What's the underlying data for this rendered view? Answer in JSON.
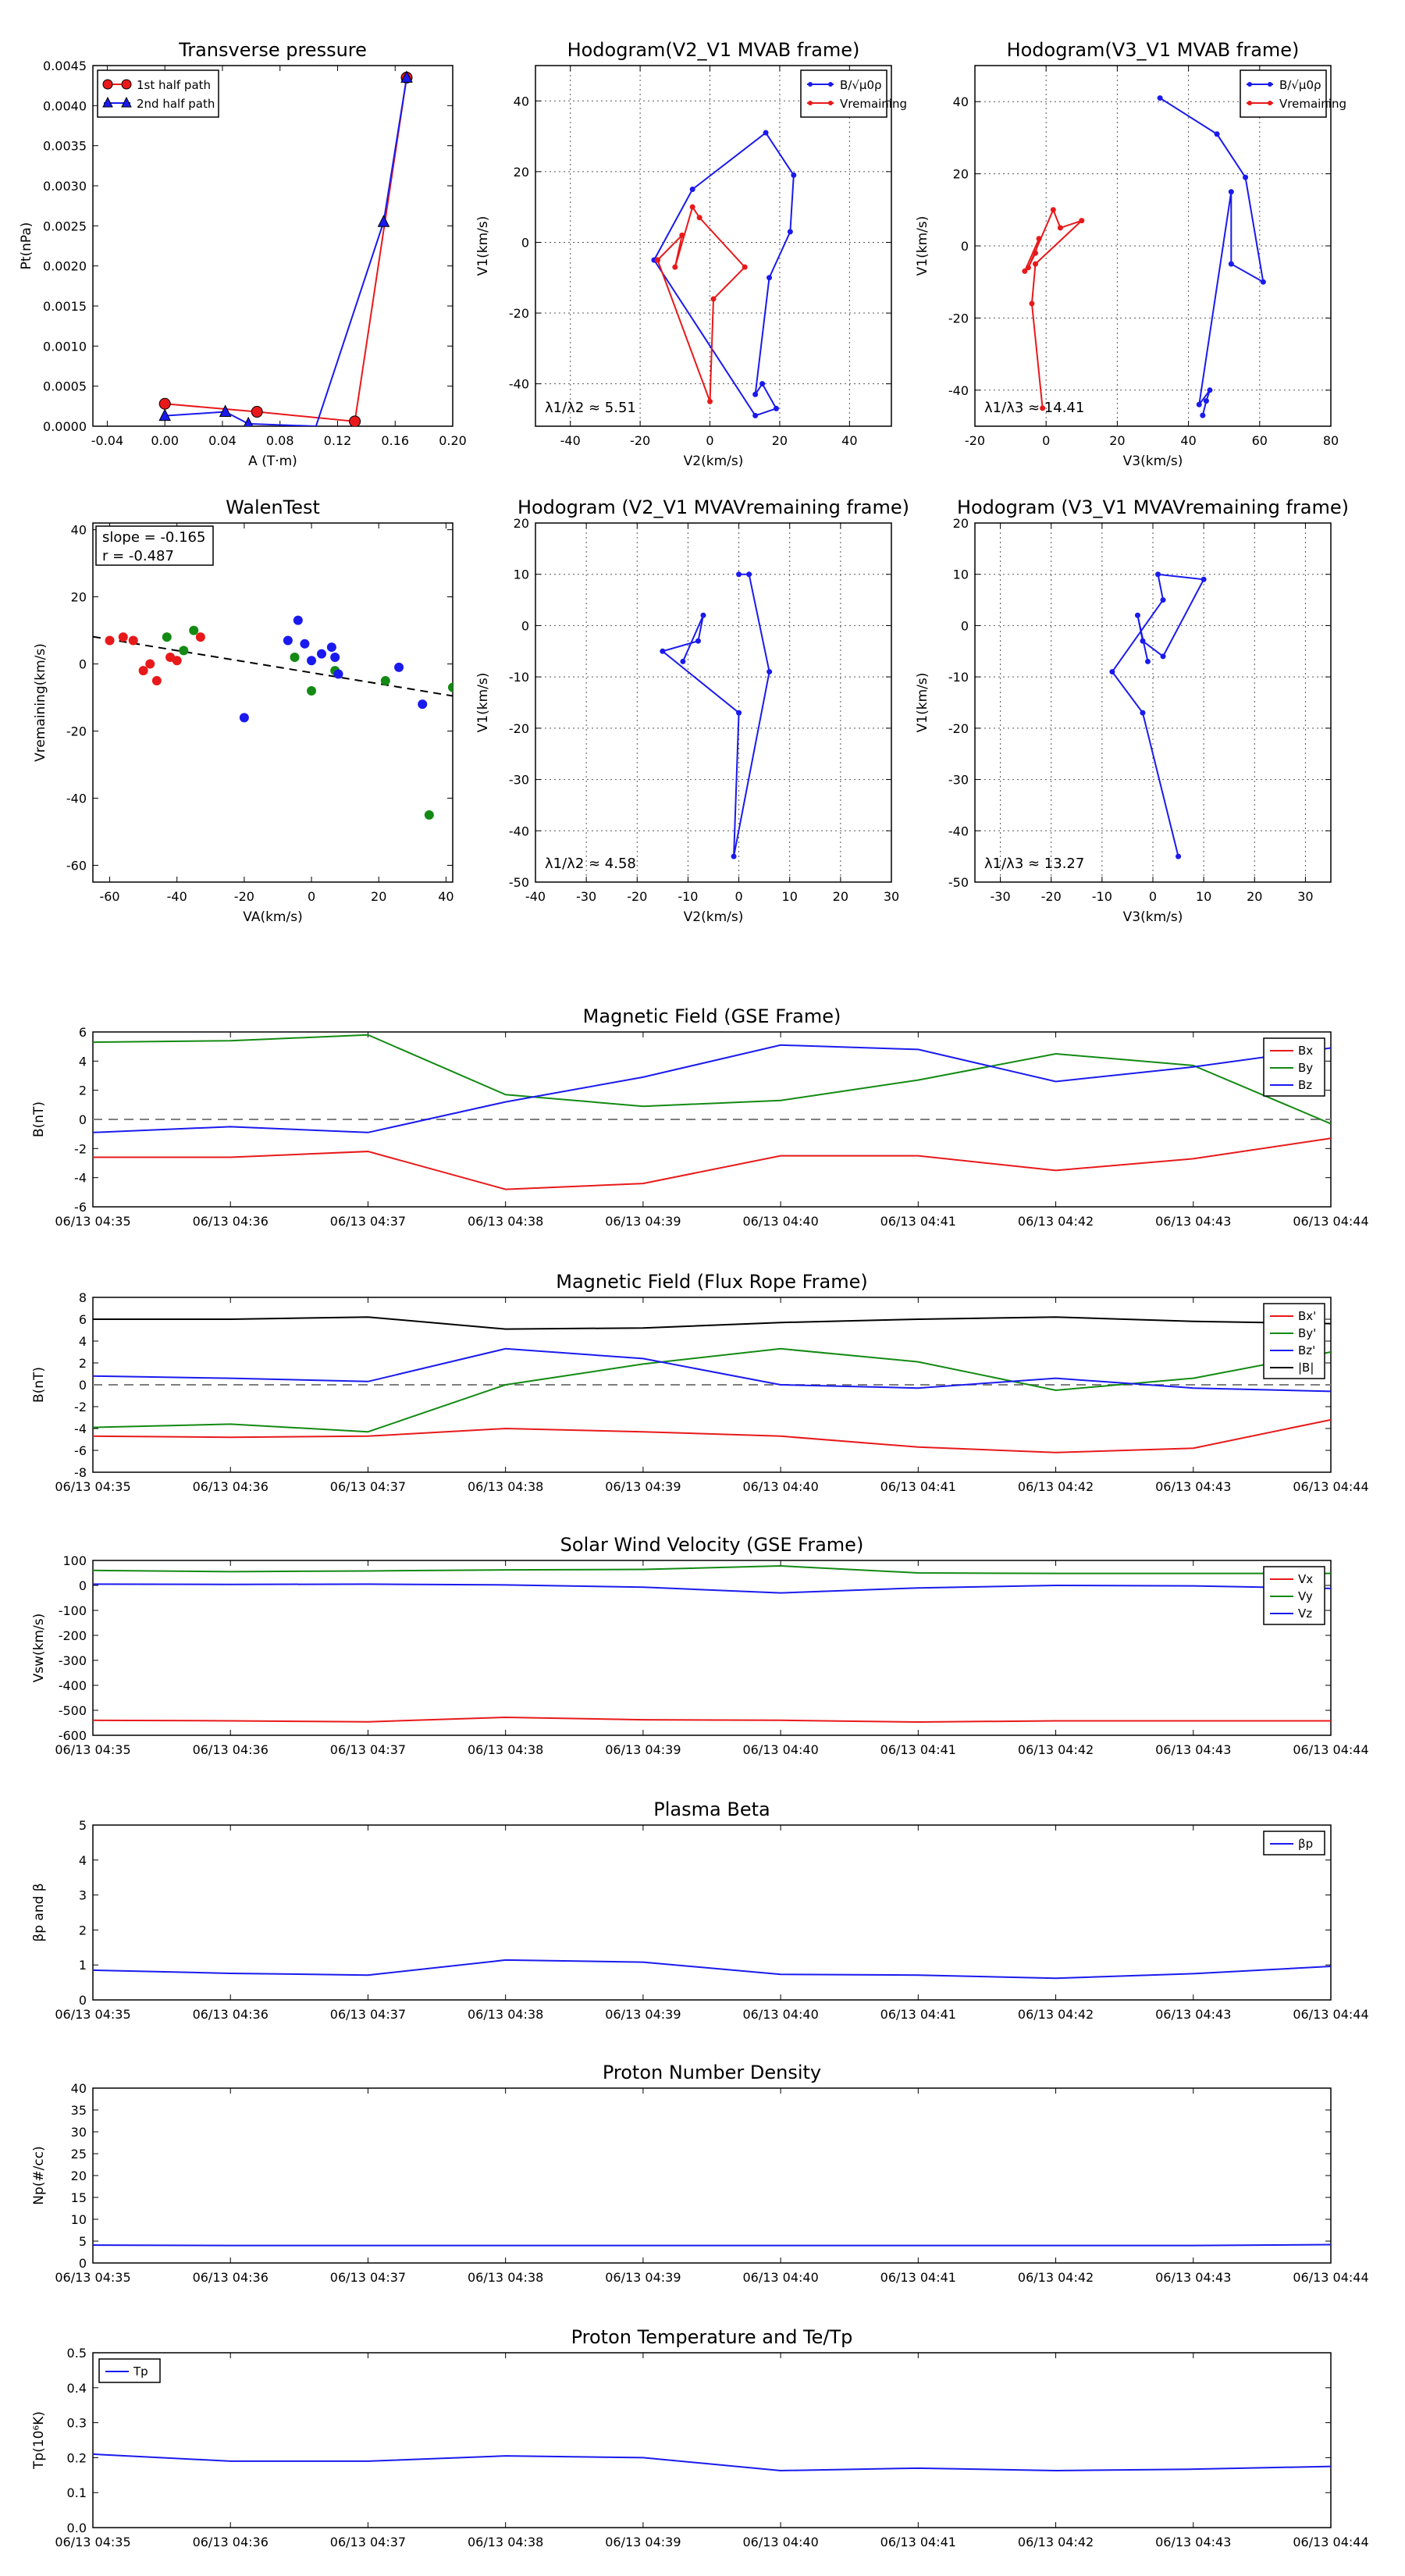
{
  "colors": {
    "red": "#e8191a",
    "green": "#138a13",
    "blue": "#1a1aee",
    "black": "#000000"
  },
  "chart_data": [
    {
      "type": "scatter",
      "title": "Transverse pressure",
      "xlabel": "A (T·m)",
      "ylabel": "Pt(nPa)",
      "xlim": [
        -0.05,
        0.2
      ],
      "ylim": [
        0,
        0.0045
      ],
      "xticks": [
        -0.04,
        0.0,
        0.04,
        0.08,
        0.12,
        0.16,
        0.2
      ],
      "xtick_labels": [
        "-0.04",
        "0.00",
        "0.04",
        "0.08",
        "0.12",
        "0.16",
        "0.20"
      ],
      "yticks": [
        0,
        0.0005,
        0.001,
        0.0015,
        0.002,
        0.0025,
        0.003,
        0.0035,
        0.004,
        0.0045
      ],
      "ytick_labels": [
        "0.0000",
        "0.0005",
        "0.0010",
        "0.0015",
        "0.0020",
        "0.0025",
        "0.0030",
        "0.0035",
        "0.0040",
        "0.0045"
      ],
      "grid": false,
      "legend": "upper-left",
      "series": [
        {
          "name": "1st half path",
          "color": "red",
          "marker": "circle",
          "x": [
            0.0,
            0.064,
            0.132,
            0.168
          ],
          "y": [
            0.00028,
            0.00018,
            6e-05,
            0.00435
          ]
        },
        {
          "name": "2nd half path",
          "color": "blue",
          "marker": "triangle",
          "x": [
            0.0,
            0.042,
            0.058,
            0.105,
            0.152,
            0.168
          ],
          "y": [
            0.00013,
            0.00018,
            3e-05,
            0.0,
            0.00255,
            0.00435
          ],
          "markers_at": [
            0,
            1,
            2,
            4,
            5
          ]
        }
      ]
    },
    {
      "type": "line",
      "title": "Hodogram(V2_V1 MVAB frame)",
      "xlabel": "V2(km/s)",
      "ylabel": "V1(km/s)",
      "xlim": [
        -50,
        52
      ],
      "ylim": [
        -52,
        50
      ],
      "xticks": [
        -40,
        -20,
        0,
        20,
        40
      ],
      "yticks": [
        -40,
        -20,
        0,
        20,
        40
      ],
      "grid": true,
      "legend": "upper-right",
      "annotation": "λ1/λ2 ≈ 5.51",
      "series": [
        {
          "name": "B/√μ0ρ",
          "color": "blue",
          "x": [
            -16,
            -5,
            16,
            24,
            23,
            17,
            13,
            15,
            19,
            13,
            -16
          ],
          "y": [
            -5,
            15,
            31,
            19,
            3,
            -10,
            -43,
            -40,
            -47,
            -49,
            -5
          ]
        },
        {
          "name": "Vremaining",
          "color": "red",
          "x": [
            -15,
            -8,
            -10,
            -5,
            -3,
            10,
            1,
            0,
            -15
          ],
          "y": [
            -5,
            2,
            -7,
            10,
            7,
            -7,
            -16,
            -45,
            -5
          ]
        }
      ]
    },
    {
      "type": "line",
      "title": "Hodogram(V3_V1 MVAB frame)",
      "xlabel": "V3(km/s)",
      "ylabel": "V1(km/s)",
      "xlim": [
        -20,
        80
      ],
      "ylim": [
        -50,
        50
      ],
      "xticks": [
        -20,
        0,
        20,
        40,
        60,
        80
      ],
      "yticks": [
        -40,
        -20,
        0,
        20,
        40
      ],
      "grid": true,
      "legend": "upper-right",
      "annotation": "λ1/λ3 ≈ 14.41",
      "series": [
        {
          "name": "B/√μ0ρ",
          "color": "blue",
          "x": [
            32,
            48,
            56,
            61,
            52,
            52,
            43,
            46,
            45,
            44
          ],
          "y": [
            41,
            31,
            19,
            -10,
            -5,
            15,
            -44,
            -40,
            -43,
            -47
          ]
        },
        {
          "name": "Vremaining",
          "color": "red",
          "x": [
            -6,
            -2,
            -3,
            -5,
            2,
            4,
            10,
            -3,
            -4,
            -1
          ],
          "y": [
            -7,
            2,
            -2,
            -6,
            10,
            5,
            7,
            -5,
            -16,
            -45
          ]
        }
      ]
    },
    {
      "type": "scatter",
      "title": "WalenTest",
      "xlabel": "VA(km/s)",
      "ylabel": "Vremaining(km/s)",
      "xlim": [
        -65,
        42
      ],
      "ylim": [
        -65,
        42
      ],
      "xticks": [
        -60,
        -40,
        -20,
        0,
        20,
        40
      ],
      "yticks": [
        -60,
        -40,
        -20,
        0,
        20,
        40
      ],
      "grid": false,
      "annotation_lines": [
        "slope = -0.165",
        "r = -0.487"
      ],
      "fit_line": {
        "slope": -0.165,
        "intercept": -2.6
      },
      "series": [
        {
          "color": "red",
          "x": [
            -60,
            -56,
            -53,
            -50,
            -48,
            -46,
            -42,
            -40,
            -33
          ],
          "y": [
            7,
            8,
            7,
            -2,
            0,
            -5,
            2,
            1,
            8
          ]
        },
        {
          "color": "green",
          "x": [
            -43,
            -38,
            -35,
            -5,
            0,
            7,
            22,
            35,
            42
          ],
          "y": [
            8,
            4,
            10,
            2,
            -8,
            -2,
            -5,
            -45,
            -7
          ]
        },
        {
          "color": "blue",
          "x": [
            -7,
            -4,
            -2,
            0,
            3,
            6,
            7,
            8,
            26,
            33,
            -20
          ],
          "y": [
            7,
            13,
            6,
            1,
            3,
            5,
            2,
            -3,
            -1,
            -12,
            -16
          ]
        }
      ]
    },
    {
      "type": "line",
      "title": "Hodogram (V2_V1 MVAVremaining frame)",
      "xlabel": "V2(km/s)",
      "ylabel": "V1(km/s)",
      "xlim": [
        -40,
        30
      ],
      "ylim": [
        -50,
        20
      ],
      "xticks": [
        -40,
        -30,
        -20,
        -10,
        0,
        10,
        20,
        30
      ],
      "yticks": [
        -50,
        -40,
        -30,
        -20,
        -10,
        0,
        10,
        20
      ],
      "grid": true,
      "annotation": "λ1/λ2 ≈ 4.58",
      "series": [
        {
          "color": "blue",
          "x": [
            -11,
            -7,
            -8,
            -15,
            0,
            -1,
            6,
            2,
            0
          ],
          "y": [
            -7,
            2,
            -3,
            -5,
            -17,
            -45,
            -9,
            10,
            10
          ]
        }
      ]
    },
    {
      "type": "line",
      "title": "Hodogram (V3_V1 MVAVremaining frame)",
      "xlabel": "V3(km/s)",
      "ylabel": "V1(km/s)",
      "xlim": [
        -35,
        35
      ],
      "ylim": [
        -50,
        20
      ],
      "xticks": [
        -30,
        -20,
        -10,
        0,
        10,
        20,
        30
      ],
      "yticks": [
        -50,
        -40,
        -30,
        -20,
        -10,
        0,
        10,
        20
      ],
      "grid": true,
      "annotation": "λ1/λ3 ≈ 13.27",
      "series": [
        {
          "color": "blue",
          "x": [
            -1,
            -3,
            -2,
            2,
            10,
            1,
            2,
            -8,
            -2,
            5
          ],
          "y": [
            -7,
            2,
            -3,
            -6,
            9,
            10,
            5,
            -9,
            -17,
            -45
          ]
        }
      ]
    },
    {
      "type": "line",
      "title": "Magnetic Field (GSE Frame)",
      "ylabel": "B(nT)",
      "categories": [
        "06/13 04:35",
        "06/13 04:36",
        "06/13 04:37",
        "06/13 04:38",
        "06/13 04:39",
        "06/13 04:40",
        "06/13 04:41",
        "06/13 04:42",
        "06/13 04:43",
        "06/13 04:44"
      ],
      "ylim": [
        -6,
        6
      ],
      "yticks": [
        -6,
        -4,
        -2,
        0,
        2,
        4,
        6
      ],
      "zero_line": true,
      "legend": "upper-right",
      "series": [
        {
          "name": "Bx",
          "color": "red",
          "values": [
            -2.6,
            -2.6,
            -2.2,
            -4.8,
            -4.4,
            -2.5,
            -2.5,
            -3.5,
            -2.7,
            -1.3
          ]
        },
        {
          "name": "By",
          "color": "green",
          "values": [
            5.3,
            5.4,
            5.8,
            1.7,
            0.9,
            1.3,
            2.7,
            4.5,
            3.7,
            -0.3
          ]
        },
        {
          "name": "Bz",
          "color": "blue",
          "values": [
            -0.9,
            -0.5,
            -0.9,
            1.2,
            2.9,
            5.1,
            4.8,
            2.6,
            3.6,
            4.9
          ]
        }
      ]
    },
    {
      "type": "line",
      "title": "Magnetic Field (Flux Rope Frame)",
      "ylabel": "B(nT)",
      "categories": [
        "06/13 04:35",
        "06/13 04:36",
        "06/13 04:37",
        "06/13 04:38",
        "06/13 04:39",
        "06/13 04:40",
        "06/13 04:41",
        "06/13 04:42",
        "06/13 04:43",
        "06/13 04:44"
      ],
      "ylim": [
        -8,
        8
      ],
      "yticks": [
        -8,
        -6,
        -4,
        -2,
        0,
        2,
        4,
        6,
        8
      ],
      "zero_line": true,
      "legend": "upper-right",
      "series": [
        {
          "name": "Bx'",
          "color": "red",
          "values": [
            -4.7,
            -4.8,
            -4.7,
            -4.0,
            -4.3,
            -4.7,
            -5.7,
            -6.2,
            -5.8,
            -3.2
          ]
        },
        {
          "name": "By'",
          "color": "green",
          "values": [
            -3.9,
            -3.6,
            -4.3,
            0.0,
            1.9,
            3.3,
            2.1,
            -0.5,
            0.6,
            3.0
          ]
        },
        {
          "name": "Bz'",
          "color": "blue",
          "values": [
            0.8,
            0.6,
            0.3,
            3.3,
            2.4,
            0.0,
            -0.3,
            0.6,
            -0.3,
            -0.6
          ]
        },
        {
          "name": "|B|",
          "color": "black",
          "values": [
            6.0,
            6.0,
            6.2,
            5.1,
            5.2,
            5.7,
            6.0,
            6.2,
            5.8,
            5.6
          ]
        }
      ]
    },
    {
      "type": "line",
      "title": "Solar Wind Velocity (GSE Frame)",
      "ylabel": "Vsw(km/s)",
      "categories": [
        "06/13 04:35",
        "06/13 04:36",
        "06/13 04:37",
        "06/13 04:38",
        "06/13 04:39",
        "06/13 04:40",
        "06/13 04:41",
        "06/13 04:42",
        "06/13 04:43",
        "06/13 04:44"
      ],
      "ylim": [
        -600,
        100
      ],
      "yticks": [
        -600,
        -500,
        -400,
        -300,
        -200,
        -100,
        0,
        100
      ],
      "legend": "upper-right",
      "series": [
        {
          "name": "Vx",
          "color": "red",
          "values": [
            -540,
            -542,
            -546,
            -528,
            -538,
            -540,
            -547,
            -542,
            -542,
            -542
          ]
        },
        {
          "name": "Vy",
          "color": "green",
          "values": [
            60,
            55,
            58,
            62,
            64,
            78,
            50,
            48,
            48,
            48
          ]
        },
        {
          "name": "Vz",
          "color": "blue",
          "values": [
            5,
            4,
            5,
            2,
            -7,
            -30,
            -10,
            0,
            -2,
            -12
          ]
        }
      ]
    },
    {
      "type": "line",
      "title": "Plasma Beta",
      "ylabel": "βp and β",
      "categories": [
        "06/13 04:35",
        "06/13 04:36",
        "06/13 04:37",
        "06/13 04:38",
        "06/13 04:39",
        "06/13 04:40",
        "06/13 04:41",
        "06/13 04:42",
        "06/13 04:43",
        "06/13 04:44"
      ],
      "ylim": [
        0,
        5
      ],
      "yticks": [
        0,
        1,
        2,
        3,
        4,
        5
      ],
      "legend": "upper-right",
      "series": [
        {
          "name": "βp",
          "color": "blue",
          "values": [
            0.85,
            0.76,
            0.71,
            1.14,
            1.08,
            0.73,
            0.71,
            0.62,
            0.75,
            0.96
          ]
        }
      ]
    },
    {
      "type": "line",
      "title": "Proton Number Density",
      "ylabel": "Np(#/cc)",
      "categories": [
        "06/13 04:35",
        "06/13 04:36",
        "06/13 04:37",
        "06/13 04:38",
        "06/13 04:39",
        "06/13 04:40",
        "06/13 04:41",
        "06/13 04:42",
        "06/13 04:43",
        "06/13 04:44"
      ],
      "ylim": [
        0,
        40
      ],
      "yticks": [
        0,
        5,
        10,
        15,
        20,
        25,
        30,
        35,
        40
      ],
      "series": [
        {
          "color": "blue",
          "values": [
            4.1,
            4.0,
            4.0,
            4.0,
            4.0,
            4.0,
            4.0,
            4.0,
            4.0,
            4.2
          ]
        }
      ]
    },
    {
      "type": "line",
      "title": "Proton Temperature and Te/Tp",
      "ylabel": "Tp(10⁶K)",
      "categories": [
        "06/13 04:35",
        "06/13 04:36",
        "06/13 04:37",
        "06/13 04:38",
        "06/13 04:39",
        "06/13 04:40",
        "06/13 04:41",
        "06/13 04:42",
        "06/13 04:43",
        "06/13 04:44"
      ],
      "ylim": [
        0,
        0.5
      ],
      "yticks": [
        0,
        0.1,
        0.2,
        0.3,
        0.4,
        0.5
      ],
      "legend": "upper-left",
      "series": [
        {
          "name": "Tp",
          "color": "blue",
          "values": [
            0.21,
            0.19,
            0.19,
            0.205,
            0.2,
            0.163,
            0.17,
            0.163,
            0.167,
            0.175
          ]
        }
      ]
    }
  ]
}
